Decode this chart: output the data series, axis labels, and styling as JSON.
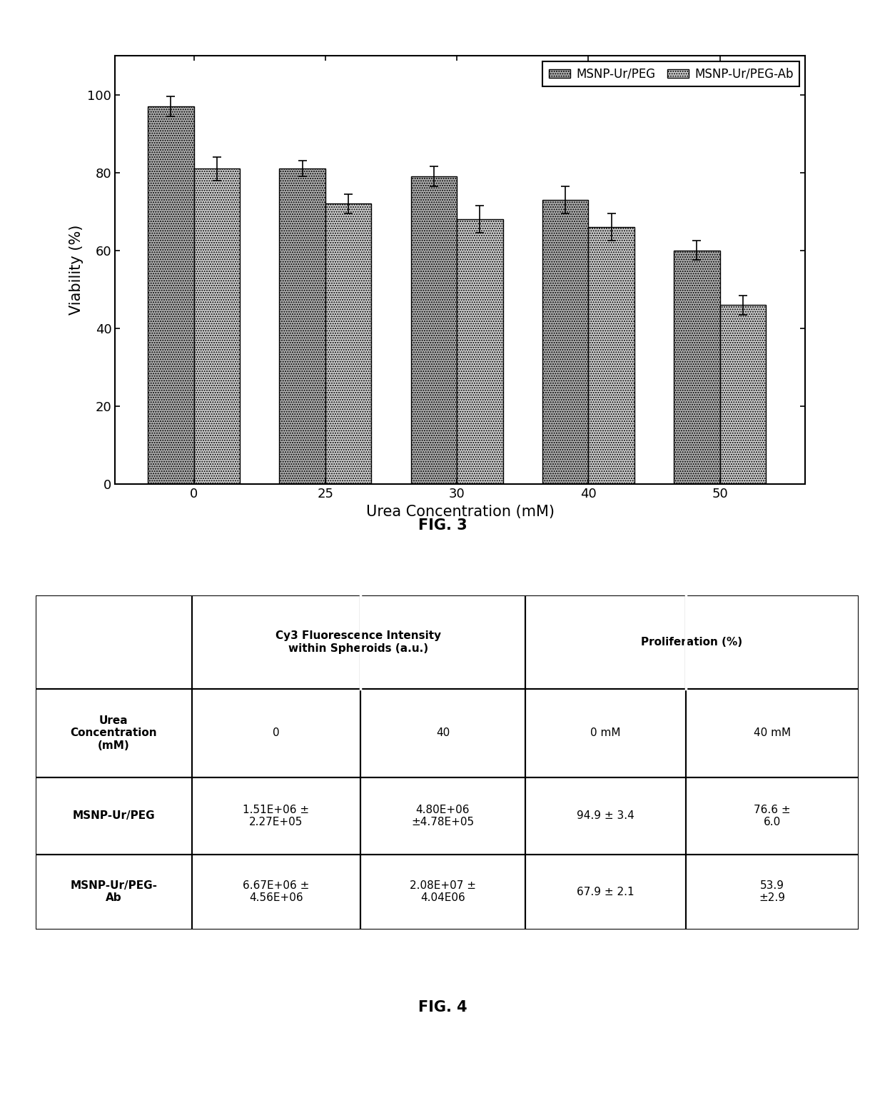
{
  "fig3": {
    "categories": [
      0,
      25,
      30,
      40,
      50
    ],
    "peg_values": [
      97,
      81,
      79,
      73,
      60
    ],
    "peg_errors": [
      2.5,
      2.0,
      2.5,
      3.5,
      2.5
    ],
    "peg_ab_values": [
      81,
      72,
      68,
      66,
      46
    ],
    "peg_ab_errors": [
      3.0,
      2.5,
      3.5,
      3.5,
      2.5
    ],
    "ylabel": "Viability (%)",
    "xlabel": "Urea Concentration (mM)",
    "yticks": [
      0,
      20,
      40,
      60,
      80,
      100
    ],
    "ylim": [
      0,
      110
    ],
    "legend1": "MSNP-Ur/PEG",
    "legend2": "MSNP-Ur/PEG-Ab",
    "bar_color1": "#aaaaaa",
    "bar_color2": "#cccccc"
  },
  "fig4": {
    "row1_label": "MSNP-Ur/PEG",
    "row2_label": "MSNP-Ur/PEG-\nAb",
    "row1_data": [
      "1.51E+06 ±\n2.27E+05",
      "4.80E+06\n±4.78E+05",
      "94.9 ± 3.4",
      "76.6 ±\n6.0"
    ],
    "row2_data": [
      "6.67E+06 ±\n4.56E+06",
      "2.08E+07 ±\n4.04E06",
      "67.9 ± 2.1",
      "53.9\n±2.9"
    ],
    "header_row": [
      "",
      "Cy3 Fluorescence Intensity\nwithin Spheroids (a.u.)",
      "",
      "Proliferation (%)",
      ""
    ],
    "subheader_row": [
      "Urea\nConcentration\n(mM)",
      "0",
      "40",
      "0 mM",
      "40 mM"
    ]
  },
  "fig3_label": "FIG. 3",
  "fig4_label": "FIG. 4",
  "background_color": "#ffffff",
  "bar_width": 0.35,
  "bar_edge_color": "#000000"
}
